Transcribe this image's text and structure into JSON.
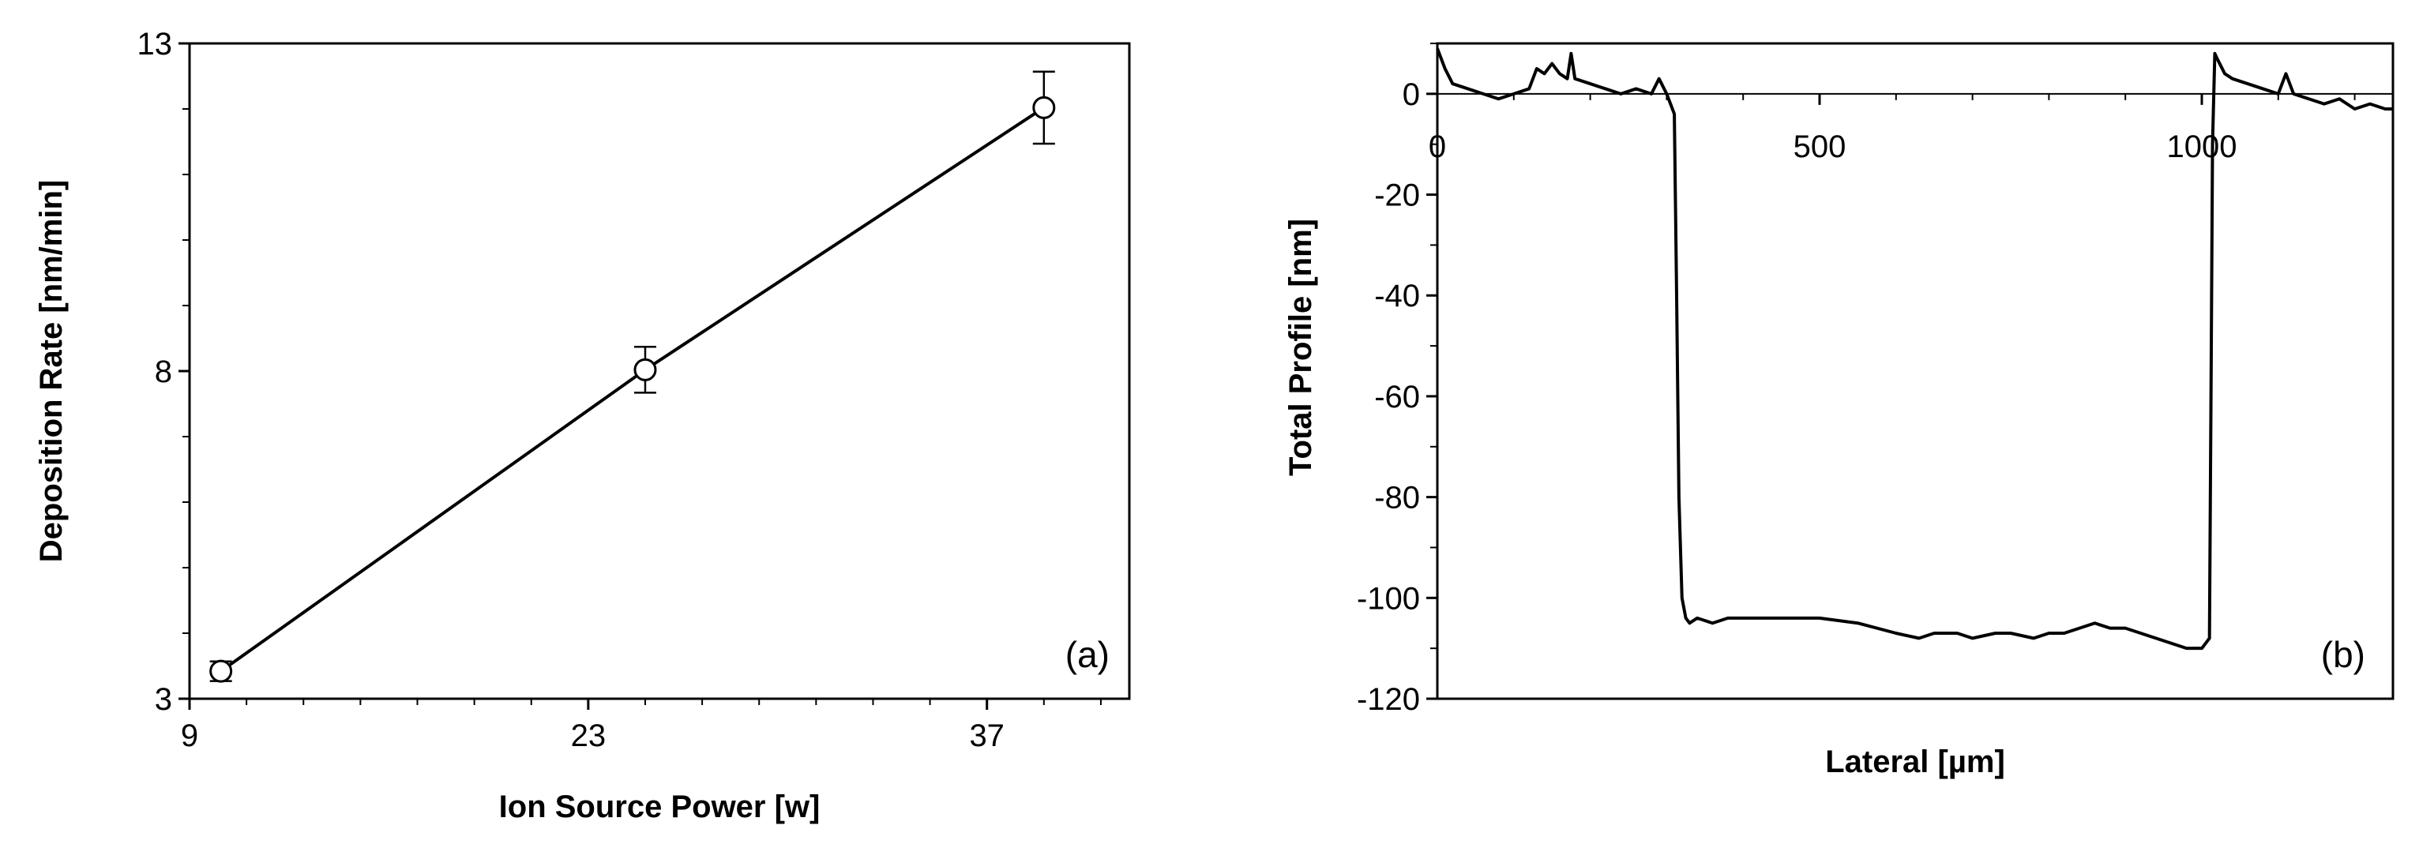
{
  "chart_data": [
    {
      "type": "line",
      "panel_label": "(a)",
      "xlabel": "Ion Source Power [w]",
      "ylabel": "Deposition Rate [nm/min]",
      "xlim": [
        9,
        42
      ],
      "ylim": [
        3,
        13
      ],
      "xticks": [
        9,
        23,
        37
      ],
      "yticks": [
        3,
        8,
        13
      ],
      "grid": false,
      "markers": "open-circle",
      "error_bars": true,
      "x": [
        10.1,
        25.0,
        39.0
      ],
      "y": [
        3.42,
        8.02,
        12.02
      ],
      "yerr": [
        0.15,
        0.35,
        0.55
      ]
    },
    {
      "type": "line",
      "panel_label": "(b)",
      "xlabel": "Lateral [µm]",
      "ylabel": "Total Profile [nm]",
      "xlim": [
        0,
        1250
      ],
      "ylim": [
        -120,
        10
      ],
      "xticks": [
        0,
        500,
        1000
      ],
      "yticks": [
        0,
        -20,
        -40,
        -60,
        -80,
        -100,
        -120
      ],
      "grid": false,
      "x": [
        0,
        10,
        20,
        40,
        60,
        80,
        100,
        120,
        130,
        140,
        150,
        160,
        170,
        175,
        180,
        200,
        220,
        240,
        260,
        280,
        290,
        300,
        305,
        310,
        313,
        316,
        320,
        325,
        330,
        340,
        360,
        380,
        400,
        450,
        500,
        550,
        600,
        630,
        650,
        680,
        700,
        730,
        750,
        780,
        800,
        820,
        840,
        860,
        880,
        900,
        920,
        940,
        960,
        980,
        1000,
        1010,
        1012,
        1014,
        1017,
        1020,
        1030,
        1040,
        1060,
        1080,
        1100,
        1110,
        1120,
        1140,
        1160,
        1180,
        1200,
        1220,
        1240,
        1250
      ],
      "y": [
        9,
        5,
        2,
        1,
        0,
        -1,
        0,
        1,
        5,
        4,
        6,
        4,
        3,
        8,
        3,
        2,
        1,
        0,
        1,
        0,
        3,
        0,
        -2,
        -4,
        -40,
        -80,
        -100,
        -104,
        -105,
        -104,
        -105,
        -104,
        -104,
        -104,
        -104,
        -105,
        -107,
        -108,
        -107,
        -107,
        -108,
        -107,
        -107,
        -108,
        -107,
        -107,
        -106,
        -105,
        -106,
        -106,
        -107,
        -108,
        -109,
        -110,
        -110,
        -108,
        -60,
        -10,
        8,
        7,
        4,
        3,
        2,
        1,
        0,
        4,
        0,
        -1,
        -2,
        -1,
        -3,
        -2,
        -3,
        -3
      ]
    }
  ]
}
